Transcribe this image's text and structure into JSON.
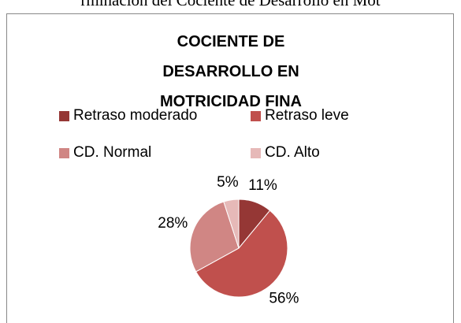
{
  "page_text": "rminación del Cociente de Desarrollo en Mot",
  "chart_data": {
    "type": "pie",
    "title": "COCIENTE DE DESARROLLO EN MOTRICIDAD FINA",
    "categories": [
      "Retraso moderado",
      "Retraso leve",
      "CD. Normal",
      "CD. Alto"
    ],
    "values": [
      11,
      56,
      28,
      5
    ],
    "value_labels": [
      "11%",
      "56%",
      "28%",
      "5%"
    ],
    "colors": [
      "#953735",
      "#c0504d",
      "#d08684",
      "#e6b9b8"
    ],
    "legend": "top"
  }
}
